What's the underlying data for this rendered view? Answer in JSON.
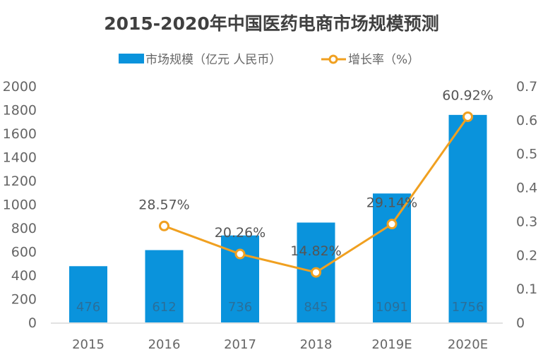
{
  "chart_data": {
    "type": "bar+line",
    "title": "2015-2020年中国医药电商市场规模预测",
    "categories": [
      "2015",
      "2016",
      "2017",
      "2018",
      "2019E",
      "2020E"
    ],
    "series": [
      {
        "name": "市场规模（亿元 人民币）",
        "type": "bar",
        "axis": "left",
        "values": [
          476,
          612,
          736,
          845,
          1091,
          1756
        ],
        "labels": [
          "476",
          "612",
          "736",
          "845",
          "1091",
          "1756"
        ],
        "color": "#0a93dc"
      },
      {
        "name": "增长率（%）",
        "type": "line",
        "axis": "right",
        "values": [
          null,
          0.2857,
          0.2026,
          0.1482,
          0.2914,
          0.6092
        ],
        "labels": [
          "",
          "28.57%",
          "20.26%",
          "14.82%",
          "29.14%",
          "60.92%"
        ],
        "color": "#f0a020"
      }
    ],
    "left_axis": {
      "range": [
        0,
        2000
      ],
      "ticks": [
        "0",
        "200",
        "400",
        "600",
        "800",
        "1000",
        "1200",
        "1400",
        "1600",
        "1800",
        "2000"
      ]
    },
    "right_axis": {
      "range": [
        0,
        0.7
      ],
      "ticks": [
        "0",
        "0.1",
        "0.2",
        "0.3",
        "0.4",
        "0.5",
        "0.6",
        "0.7"
      ]
    },
    "legend": "top",
    "grid": false
  }
}
